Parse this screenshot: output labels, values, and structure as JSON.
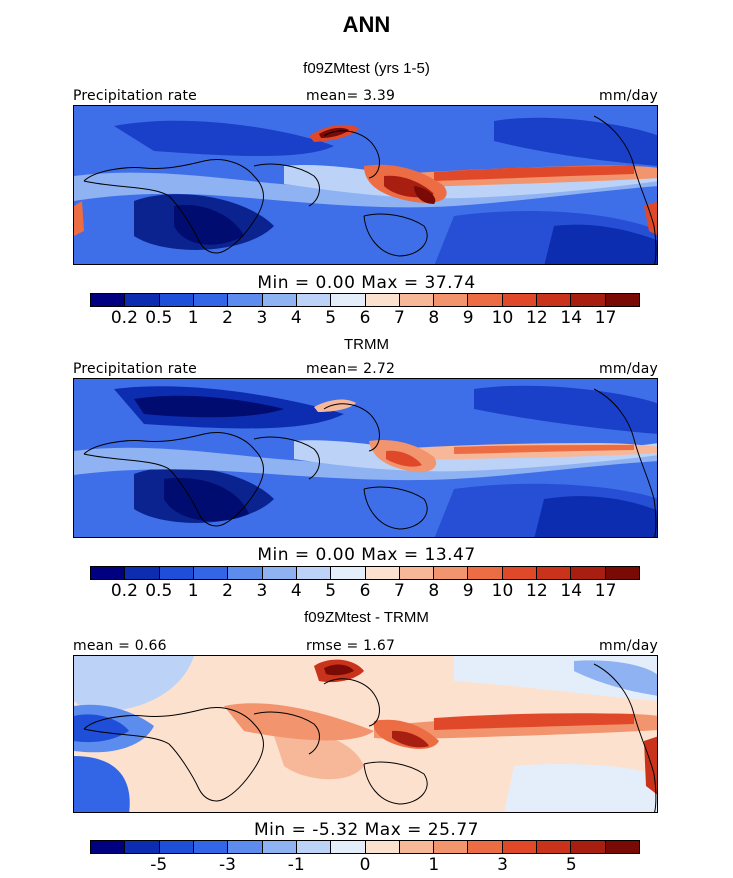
{
  "figure": {
    "title": "ANN"
  },
  "panels": [
    {
      "id": "model",
      "subtitle": "f09ZMtest (yrs 1-5)",
      "left_label": "Precipitation rate",
      "center_label": "mean=    3.39",
      "units": "mm/day",
      "min_max": "Min =     0.00  Max =   37.74",
      "colorbar": {
        "colors": [
          "#000080",
          "#0d2db0",
          "#1f4fd8",
          "#3366e6",
          "#5c8ced",
          "#8fb2f2",
          "#bcd2f6",
          "#e3eefa",
          "#fde1cf",
          "#f7b899",
          "#f2946d",
          "#ec6c44",
          "#e0482a",
          "#c9331c",
          "#a81e10",
          "#7a0a06"
        ],
        "labels": [
          "0.2",
          "0.5",
          "1",
          "2",
          "3",
          "4",
          "5",
          "6",
          "7",
          "8",
          "9",
          "10",
          "12",
          "14",
          "17"
        ]
      }
    },
    {
      "id": "obs",
      "subtitle": "TRMM",
      "left_label": "Precipitation rate",
      "center_label": "mean=    2.72",
      "units": "mm/day",
      "min_max": "Min =     0.00  Max =   13.47",
      "colorbar": {
        "colors": [
          "#000080",
          "#0d2db0",
          "#1f4fd8",
          "#3366e6",
          "#5c8ced",
          "#8fb2f2",
          "#bcd2f6",
          "#e3eefa",
          "#fde1cf",
          "#f7b899",
          "#f2946d",
          "#ec6c44",
          "#e0482a",
          "#c9331c",
          "#a81e10",
          "#7a0a06"
        ],
        "labels": [
          "0.2",
          "0.5",
          "1",
          "2",
          "3",
          "4",
          "5",
          "6",
          "7",
          "8",
          "9",
          "10",
          "12",
          "14",
          "17"
        ]
      }
    },
    {
      "id": "diff",
      "subtitle": "f09ZMtest - TRMM",
      "left_label": "mean =    0.66",
      "center_label": "rmse =    1.67",
      "units": "mm/day",
      "min_max": "Min =   -5.32  Max =   25.77",
      "colorbar": {
        "colors": [
          "#000080",
          "#0d2db0",
          "#1f4fd8",
          "#3366e6",
          "#5c8ced",
          "#8fb2f2",
          "#bcd2f6",
          "#e3eefa",
          "#fde1cf",
          "#f7b899",
          "#f2946d",
          "#ec6c44",
          "#e0482a",
          "#c9331c",
          "#a81e10",
          "#7a0a06"
        ],
        "labels": [
          "-5",
          "-3",
          "-1",
          "0",
          "1",
          "3",
          "5"
        ]
      }
    }
  ]
}
